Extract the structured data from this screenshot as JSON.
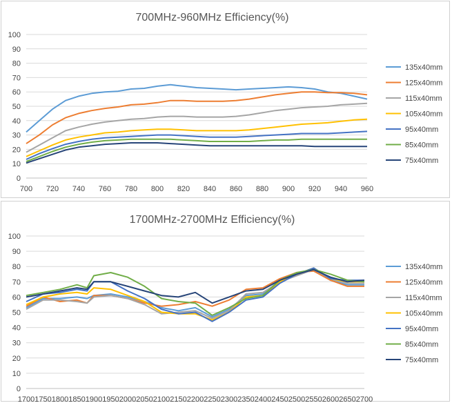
{
  "chart_data": [
    {
      "type": "line",
      "title": "700MHz-960MHz  Efficiency(%)",
      "xlabel": "",
      "ylabel": "",
      "xlim": [
        700,
        960
      ],
      "ylim": [
        0,
        100
      ],
      "xticks": [
        700,
        720,
        740,
        760,
        780,
        800,
        820,
        840,
        860,
        880,
        900,
        920,
        940,
        960
      ],
      "yticks": [
        0,
        10,
        20,
        30,
        40,
        50,
        60,
        70,
        80,
        90,
        100
      ],
      "grid": true,
      "legend": "right",
      "x": [
        700,
        710,
        720,
        730,
        740,
        750,
        760,
        770,
        780,
        790,
        800,
        810,
        820,
        830,
        840,
        850,
        860,
        870,
        880,
        890,
        900,
        910,
        920,
        930,
        940,
        950,
        960
      ],
      "series": [
        {
          "name": "135x40mm",
          "color": "#5b9bd5",
          "values": [
            32,
            40,
            48,
            54,
            57,
            59,
            60,
            60.5,
            62,
            62.5,
            64,
            65,
            64,
            63,
            62.5,
            62,
            61.5,
            62,
            62.5,
            63,
            63.5,
            63,
            62,
            60,
            59,
            57,
            55
          ]
        },
        {
          "name": "125x40mm",
          "color": "#ed7d31",
          "values": [
            24,
            30,
            37,
            42,
            45,
            47,
            48.5,
            49.5,
            51,
            51.5,
            52.5,
            54,
            54,
            53.5,
            53.5,
            53.5,
            54,
            55,
            56.5,
            58,
            59,
            60,
            60,
            59.5,
            59.5,
            59,
            58
          ]
        },
        {
          "name": "115x40mm",
          "color": "#a5a5a5",
          "values": [
            18,
            23,
            28,
            33,
            35.5,
            37.5,
            39,
            40,
            41,
            41.5,
            42.5,
            43,
            43,
            42.5,
            42.5,
            42.5,
            43,
            44,
            45.5,
            47,
            48,
            49,
            49.5,
            50,
            51,
            51.5,
            52
          ]
        },
        {
          "name": "105x40mm",
          "color": "#ffc000",
          "values": [
            15,
            19,
            23,
            26.5,
            28.5,
            30,
            31.5,
            32,
            33,
            33.5,
            34,
            34,
            33.5,
            33,
            33,
            33,
            33,
            33.5,
            34.5,
            35.5,
            36.5,
            37.5,
            38,
            38.5,
            39.5,
            40.5,
            41
          ]
        },
        {
          "name": "95x40mm",
          "color": "#4472c4",
          "values": [
            13,
            17,
            20.5,
            23.5,
            25.5,
            27,
            28,
            28.5,
            29,
            29.5,
            30,
            30,
            29.5,
            29,
            28.5,
            28.5,
            28.5,
            29,
            29.5,
            30,
            30.5,
            31,
            31,
            31,
            31.5,
            32,
            32.5
          ]
        },
        {
          "name": "85x40mm",
          "color": "#70ad47",
          "values": [
            11.5,
            15,
            18.5,
            21.5,
            23.5,
            25,
            26,
            26.5,
            27,
            27,
            27,
            27,
            26.5,
            26,
            25.5,
            25.5,
            25.5,
            25.5,
            26,
            26.5,
            26.5,
            27,
            27,
            27,
            27,
            27,
            27
          ]
        },
        {
          "name": "75x40mm",
          "color": "#264478",
          "values": [
            10.5,
            13.5,
            16.5,
            19.5,
            21.5,
            22.5,
            23.5,
            24,
            24.5,
            24.5,
            24.5,
            24,
            23.5,
            23,
            22.5,
            22.5,
            22.5,
            22.5,
            22.5,
            22.5,
            22.5,
            22.5,
            22,
            22,
            22,
            22,
            22
          ]
        }
      ]
    },
    {
      "type": "line",
      "title": "1700MHz-2700MHz  Efficiency(%)",
      "xlabel": "",
      "ylabel": "",
      "xlim": [
        1700,
        2700
      ],
      "ylim": [
        0,
        100
      ],
      "xticks": [
        1700,
        1750,
        1800,
        1850,
        1900,
        1950,
        2000,
        2050,
        2100,
        2150,
        2200,
        2250,
        2300,
        2350,
        2400,
        2450,
        2500,
        2550,
        2600,
        2650,
        2700
      ],
      "yticks": [
        0,
        10,
        20,
        30,
        40,
        50,
        60,
        70,
        80,
        90,
        100
      ],
      "grid": true,
      "legend": "right",
      "x": [
        1700,
        1750,
        1800,
        1850,
        1880,
        1900,
        1950,
        2000,
        2050,
        2100,
        2150,
        2200,
        2250,
        2300,
        2350,
        2400,
        2450,
        2500,
        2550,
        2600,
        2650,
        2700
      ],
      "series": [
        {
          "name": "135x40mm",
          "color": "#5b9bd5",
          "values": [
            53,
            59,
            59,
            60,
            59,
            61,
            62,
            60,
            57,
            53,
            51,
            53,
            47,
            52,
            61,
            62,
            71,
            75,
            78,
            71,
            68,
            68
          ]
        },
        {
          "name": "125x40mm",
          "color": "#ed7d31",
          "values": [
            54,
            60,
            57,
            58,
            56,
            61,
            61,
            59,
            56,
            54,
            55,
            57,
            54,
            58,
            65,
            66,
            72,
            76,
            77,
            71,
            67,
            67
          ]
        },
        {
          "name": "115x40mm",
          "color": "#a5a5a5",
          "values": [
            52,
            58,
            58,
            57,
            56,
            60,
            61,
            59,
            55,
            49,
            50,
            51,
            46,
            51,
            62,
            63,
            70,
            74,
            78,
            72,
            69,
            69
          ]
        },
        {
          "name": "105x40mm",
          "color": "#ffc000",
          "values": [
            55,
            60,
            62,
            63,
            62,
            66,
            65,
            61,
            57,
            50,
            49,
            49,
            45,
            50,
            60,
            61,
            70,
            75,
            79,
            72,
            70,
            70
          ]
        },
        {
          "name": "95x40mm",
          "color": "#4472c4",
          "values": [
            57,
            62,
            63,
            65,
            64,
            70,
            70,
            64,
            59,
            52,
            49,
            50,
            44,
            50,
            58,
            60,
            69,
            75,
            79,
            72,
            71,
            71
          ]
        },
        {
          "name": "85x40mm",
          "color": "#70ad47",
          "values": [
            61,
            63,
            65,
            68,
            66,
            74,
            76,
            73,
            67,
            59,
            57,
            56,
            48,
            53,
            59,
            61,
            71,
            76,
            78,
            75,
            71,
            70
          ]
        },
        {
          "name": "75x40mm",
          "color": "#264478",
          "values": [
            60,
            62,
            64,
            66,
            65,
            70,
            70,
            67,
            64,
            61,
            60,
            63,
            56,
            60,
            64,
            65,
            71,
            75,
            78,
            73,
            70,
            71
          ]
        }
      ]
    }
  ]
}
